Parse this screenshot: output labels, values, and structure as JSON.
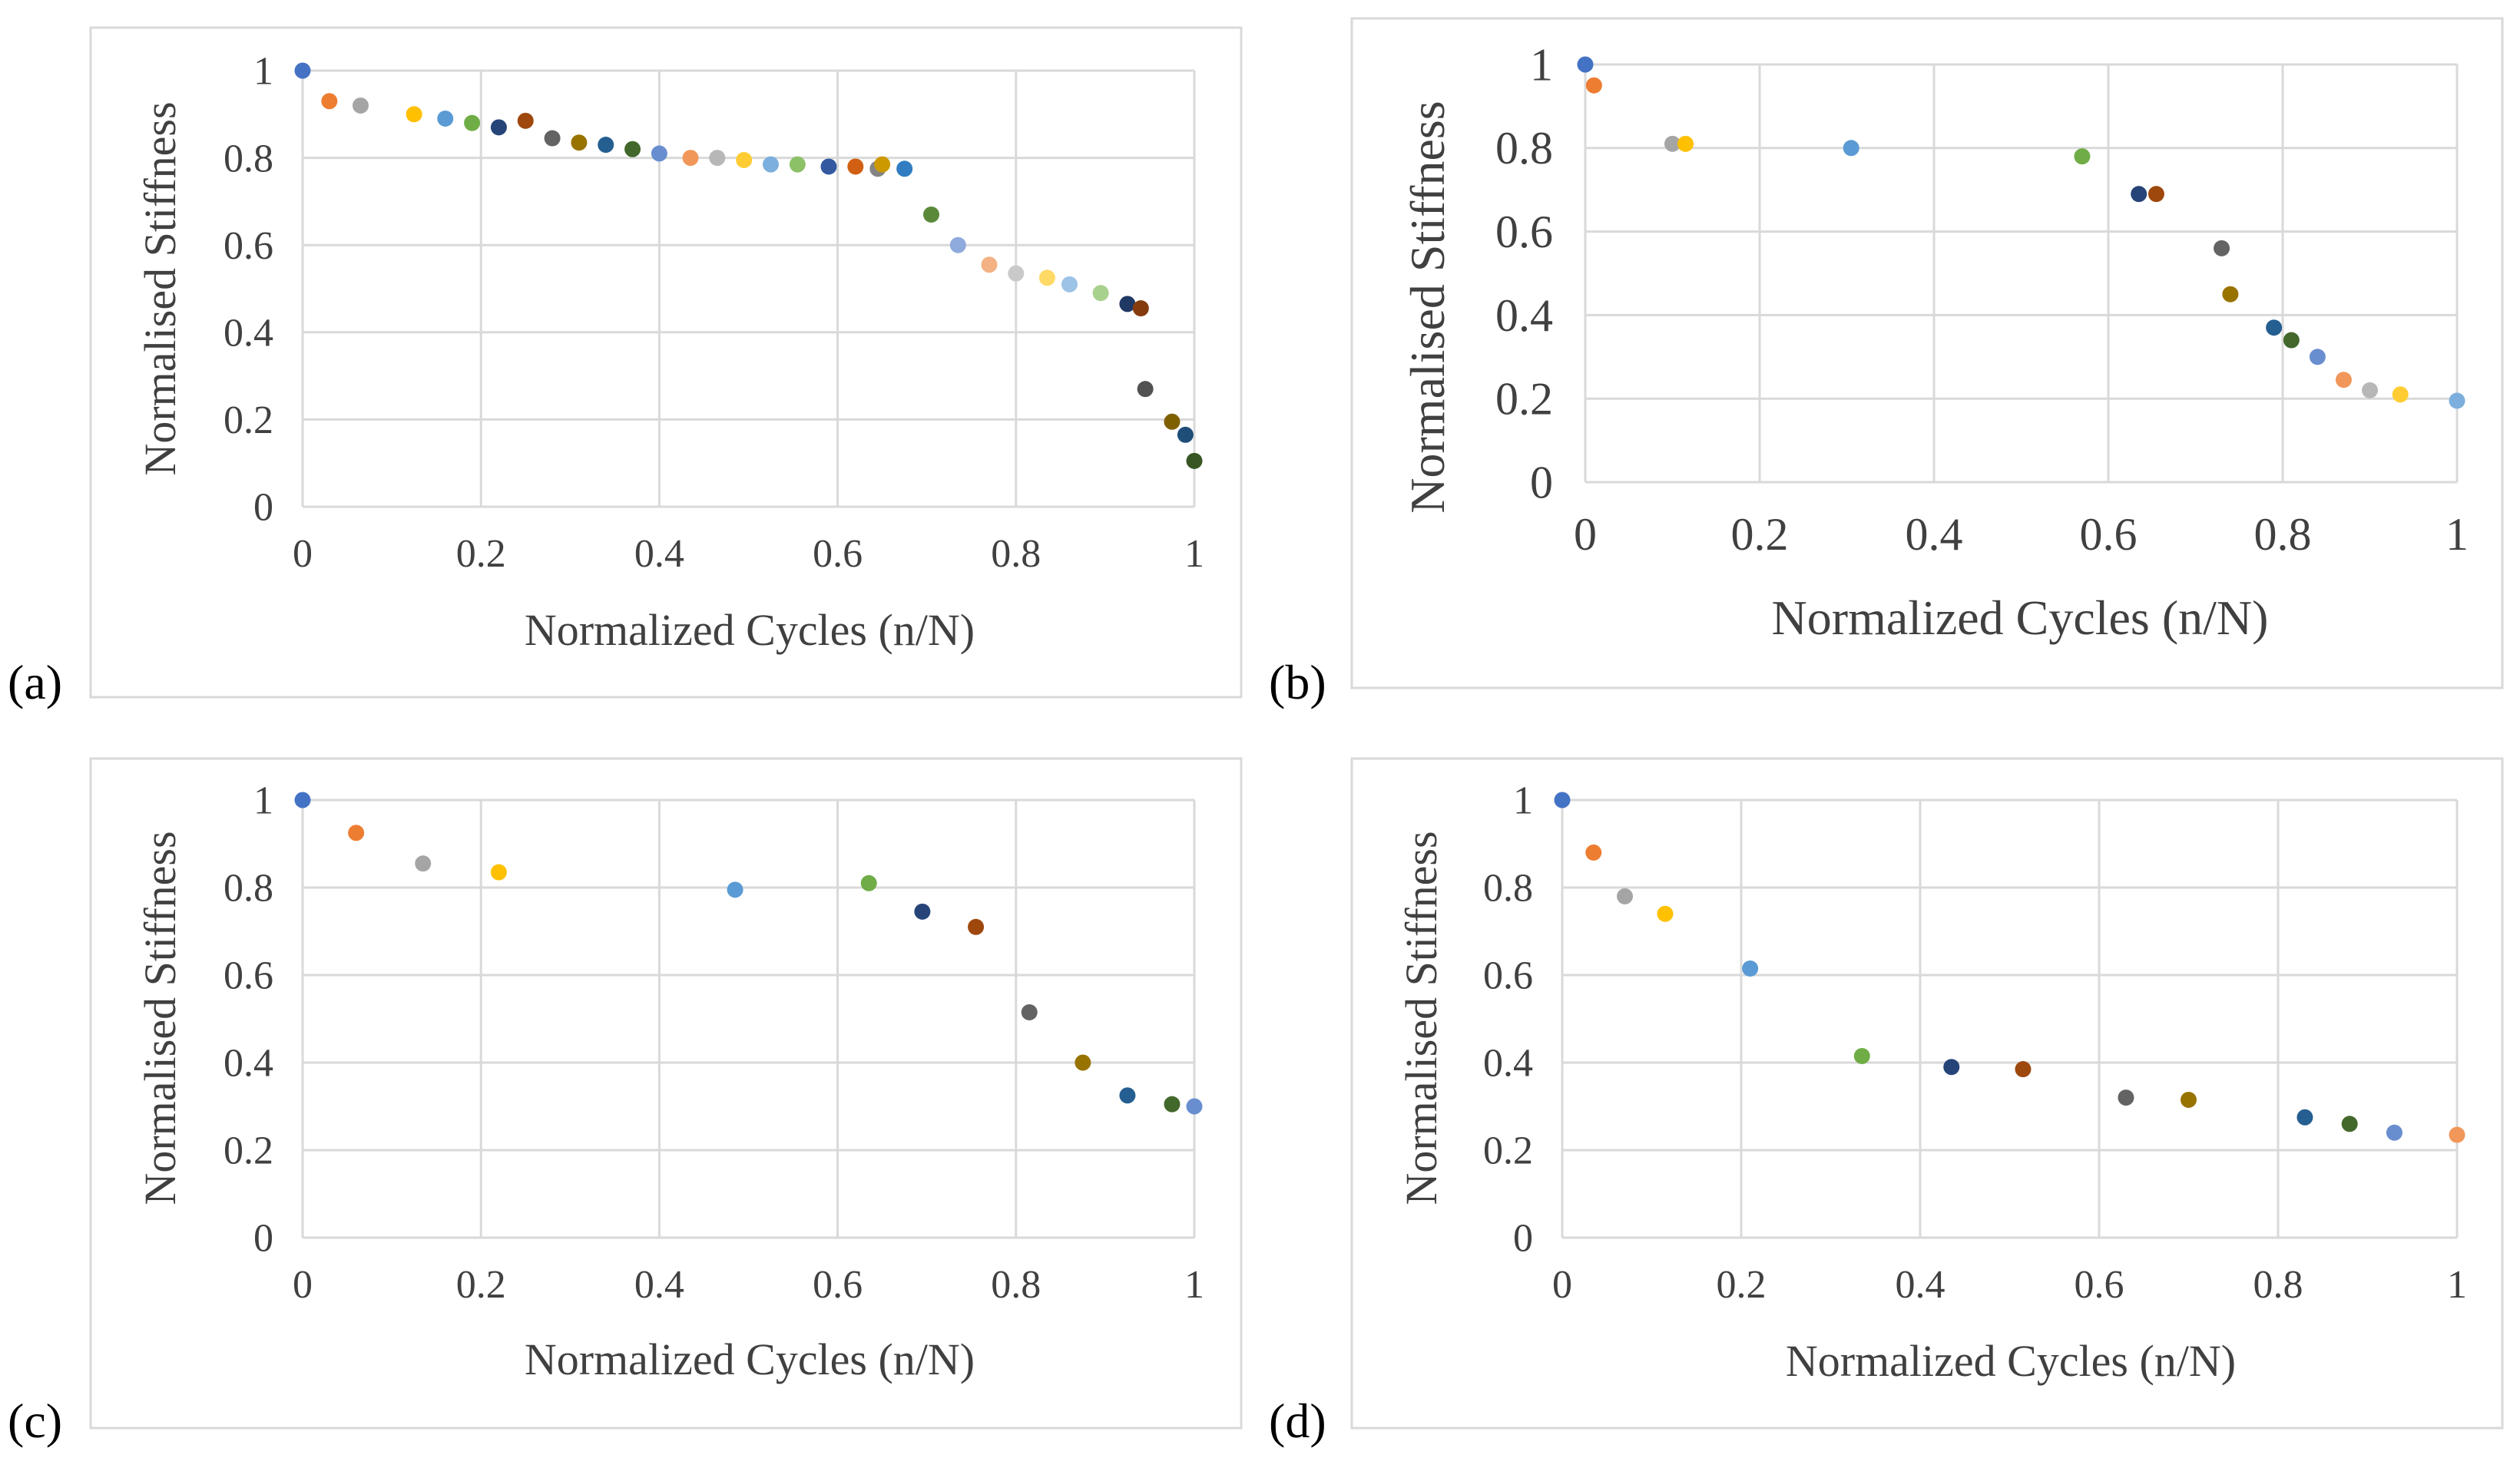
{
  "figure": {
    "panel_count": 4
  },
  "chart_data": [
    {
      "panel": "(a)",
      "type": "scatter",
      "title": "",
      "xlabel": "Normalized Cycles (n/N)",
      "ylabel": "Normalised Stiffness",
      "xlim": [
        0,
        1
      ],
      "ylim": [
        0,
        1
      ],
      "xticks": [
        "0",
        "0.2",
        "0.4",
        "0.6",
        "0.8",
        "1"
      ],
      "yticks": [
        "0",
        "0.2",
        "0.4",
        "0.6",
        "0.8",
        "1"
      ],
      "grid": true,
      "points": [
        {
          "x": 0.0,
          "y": 1.0,
          "color": "#4472C4"
        },
        {
          "x": 0.03,
          "y": 0.93,
          "color": "#ED7D31"
        },
        {
          "x": 0.065,
          "y": 0.92,
          "color": "#A5A5A5"
        },
        {
          "x": 0.125,
          "y": 0.9,
          "color": "#FFC000"
        },
        {
          "x": 0.16,
          "y": 0.89,
          "color": "#5B9BD5"
        },
        {
          "x": 0.19,
          "y": 0.88,
          "color": "#70AD47"
        },
        {
          "x": 0.22,
          "y": 0.87,
          "color": "#264478"
        },
        {
          "x": 0.25,
          "y": 0.885,
          "color": "#9E480E"
        },
        {
          "x": 0.28,
          "y": 0.845,
          "color": "#636363"
        },
        {
          "x": 0.31,
          "y": 0.835,
          "color": "#997300"
        },
        {
          "x": 0.34,
          "y": 0.83,
          "color": "#255E91"
        },
        {
          "x": 0.37,
          "y": 0.82,
          "color": "#43682B"
        },
        {
          "x": 0.4,
          "y": 0.81,
          "color": "#698ED0"
        },
        {
          "x": 0.435,
          "y": 0.8,
          "color": "#F1975A"
        },
        {
          "x": 0.465,
          "y": 0.8,
          "color": "#B7B7B7"
        },
        {
          "x": 0.495,
          "y": 0.795,
          "color": "#FFCD33"
        },
        {
          "x": 0.525,
          "y": 0.785,
          "color": "#7CAFDD"
        },
        {
          "x": 0.555,
          "y": 0.785,
          "color": "#8CC168"
        },
        {
          "x": 0.59,
          "y": 0.78,
          "color": "#335AA1"
        },
        {
          "x": 0.62,
          "y": 0.78,
          "color": "#D26012"
        },
        {
          "x": 0.645,
          "y": 0.775,
          "color": "#848484"
        },
        {
          "x": 0.65,
          "y": 0.785,
          "color": "#CC9A00"
        },
        {
          "x": 0.675,
          "y": 0.775,
          "color": "#327DC2"
        },
        {
          "x": 0.705,
          "y": 0.67,
          "color": "#5A8A39"
        },
        {
          "x": 0.735,
          "y": 0.6,
          "color": "#8FAADC"
        },
        {
          "x": 0.77,
          "y": 0.555,
          "color": "#F4B183"
        },
        {
          "x": 0.8,
          "y": 0.535,
          "color": "#C9C9C9"
        },
        {
          "x": 0.835,
          "y": 0.525,
          "color": "#FFD966"
        },
        {
          "x": 0.86,
          "y": 0.51,
          "color": "#9DC3E6"
        },
        {
          "x": 0.895,
          "y": 0.49,
          "color": "#A9D18E"
        },
        {
          "x": 0.925,
          "y": 0.465,
          "color": "#1F3864"
        },
        {
          "x": 0.94,
          "y": 0.455,
          "color": "#843C0C"
        },
        {
          "x": 0.945,
          "y": 0.27,
          "color": "#525252"
        },
        {
          "x": 0.975,
          "y": 0.195,
          "color": "#7F6000"
        },
        {
          "x": 0.99,
          "y": 0.165,
          "color": "#1F4E79"
        },
        {
          "x": 1.0,
          "y": 0.105,
          "color": "#375623"
        }
      ]
    },
    {
      "panel": "(b)",
      "type": "scatter",
      "title": "",
      "xlabel": "Normalized Cycles (n/N)",
      "ylabel": "Normalised Stiffness",
      "xlim": [
        0,
        1
      ],
      "ylim": [
        0,
        1
      ],
      "xticks": [
        "0",
        "0.2",
        "0.4",
        "0.6",
        "0.8",
        "1"
      ],
      "yticks": [
        "0",
        "0.2",
        "0.4",
        "0.6",
        "0.8",
        "1"
      ],
      "grid": true,
      "points": [
        {
          "x": 0.0,
          "y": 1.0,
          "color": "#4472C4"
        },
        {
          "x": 0.01,
          "y": 0.95,
          "color": "#ED7D31"
        },
        {
          "x": 0.1,
          "y": 0.81,
          "color": "#A5A5A5"
        },
        {
          "x": 0.115,
          "y": 0.81,
          "color": "#FFC000"
        },
        {
          "x": 0.305,
          "y": 0.8,
          "color": "#5B9BD5"
        },
        {
          "x": 0.57,
          "y": 0.78,
          "color": "#70AD47"
        },
        {
          "x": 0.635,
          "y": 0.69,
          "color": "#264478"
        },
        {
          "x": 0.655,
          "y": 0.69,
          "color": "#9E480E"
        },
        {
          "x": 0.73,
          "y": 0.56,
          "color": "#636363"
        },
        {
          "x": 0.74,
          "y": 0.45,
          "color": "#997300"
        },
        {
          "x": 0.79,
          "y": 0.37,
          "color": "#255E91"
        },
        {
          "x": 0.81,
          "y": 0.34,
          "color": "#43682B"
        },
        {
          "x": 0.84,
          "y": 0.3,
          "color": "#698ED0"
        },
        {
          "x": 0.87,
          "y": 0.245,
          "color": "#F1975A"
        },
        {
          "x": 0.9,
          "y": 0.22,
          "color": "#B7B7B7"
        },
        {
          "x": 0.935,
          "y": 0.21,
          "color": "#FFCD33"
        },
        {
          "x": 1.0,
          "y": 0.195,
          "color": "#7CAFDD"
        }
      ]
    },
    {
      "panel": "(c)",
      "type": "scatter",
      "title": "",
      "xlabel": "Normalized Cycles (n/N)",
      "ylabel": "Normalised Stiffness",
      "xlim": [
        0,
        1
      ],
      "ylim": [
        0,
        1
      ],
      "xticks": [
        "0",
        "0.2",
        "0.4",
        "0.6",
        "0.8",
        "1"
      ],
      "yticks": [
        "0",
        "0.2",
        "0.4",
        "0.6",
        "0.8",
        "1"
      ],
      "grid": true,
      "points": [
        {
          "x": 0.0,
          "y": 1.0,
          "color": "#4472C4"
        },
        {
          "x": 0.06,
          "y": 0.925,
          "color": "#ED7D31"
        },
        {
          "x": 0.135,
          "y": 0.855,
          "color": "#A5A5A5"
        },
        {
          "x": 0.22,
          "y": 0.835,
          "color": "#FFC000"
        },
        {
          "x": 0.485,
          "y": 0.795,
          "color": "#5B9BD5"
        },
        {
          "x": 0.635,
          "y": 0.81,
          "color": "#70AD47"
        },
        {
          "x": 0.695,
          "y": 0.745,
          "color": "#264478"
        },
        {
          "x": 0.755,
          "y": 0.71,
          "color": "#9E480E"
        },
        {
          "x": 0.815,
          "y": 0.515,
          "color": "#636363"
        },
        {
          "x": 0.875,
          "y": 0.4,
          "color": "#997300"
        },
        {
          "x": 0.925,
          "y": 0.325,
          "color": "#255E91"
        },
        {
          "x": 0.975,
          "y": 0.305,
          "color": "#43682B"
        },
        {
          "x": 1.0,
          "y": 0.3,
          "color": "#698ED0"
        }
      ]
    },
    {
      "panel": "(d)",
      "type": "scatter",
      "title": "",
      "xlabel": "Normalized Cycles (n/N)",
      "ylabel": "Normalised Stiffness",
      "xlim": [
        0,
        1
      ],
      "ylim": [
        0,
        1
      ],
      "xticks": [
        "0",
        "0.2",
        "0.4",
        "0.6",
        "0.8",
        "1"
      ],
      "yticks": [
        "0",
        "0.2",
        "0.4",
        "0.6",
        "0.8",
        "1"
      ],
      "grid": true,
      "points": [
        {
          "x": 0.0,
          "y": 1.0,
          "color": "#4472C4"
        },
        {
          "x": 0.035,
          "y": 0.88,
          "color": "#ED7D31"
        },
        {
          "x": 0.07,
          "y": 0.78,
          "color": "#A5A5A5"
        },
        {
          "x": 0.115,
          "y": 0.74,
          "color": "#FFC000"
        },
        {
          "x": 0.21,
          "y": 0.615,
          "color": "#5B9BD5"
        },
        {
          "x": 0.335,
          "y": 0.415,
          "color": "#70AD47"
        },
        {
          "x": 0.435,
          "y": 0.39,
          "color": "#264478"
        },
        {
          "x": 0.515,
          "y": 0.385,
          "color": "#9E480E"
        },
        {
          "x": 0.63,
          "y": 0.32,
          "color": "#636363"
        },
        {
          "x": 0.7,
          "y": 0.315,
          "color": "#997300"
        },
        {
          "x": 0.83,
          "y": 0.275,
          "color": "#255E91"
        },
        {
          "x": 0.88,
          "y": 0.26,
          "color": "#43682B"
        },
        {
          "x": 0.93,
          "y": 0.24,
          "color": "#698ED0"
        },
        {
          "x": 1.0,
          "y": 0.235,
          "color": "#F1975A"
        }
      ]
    }
  ]
}
